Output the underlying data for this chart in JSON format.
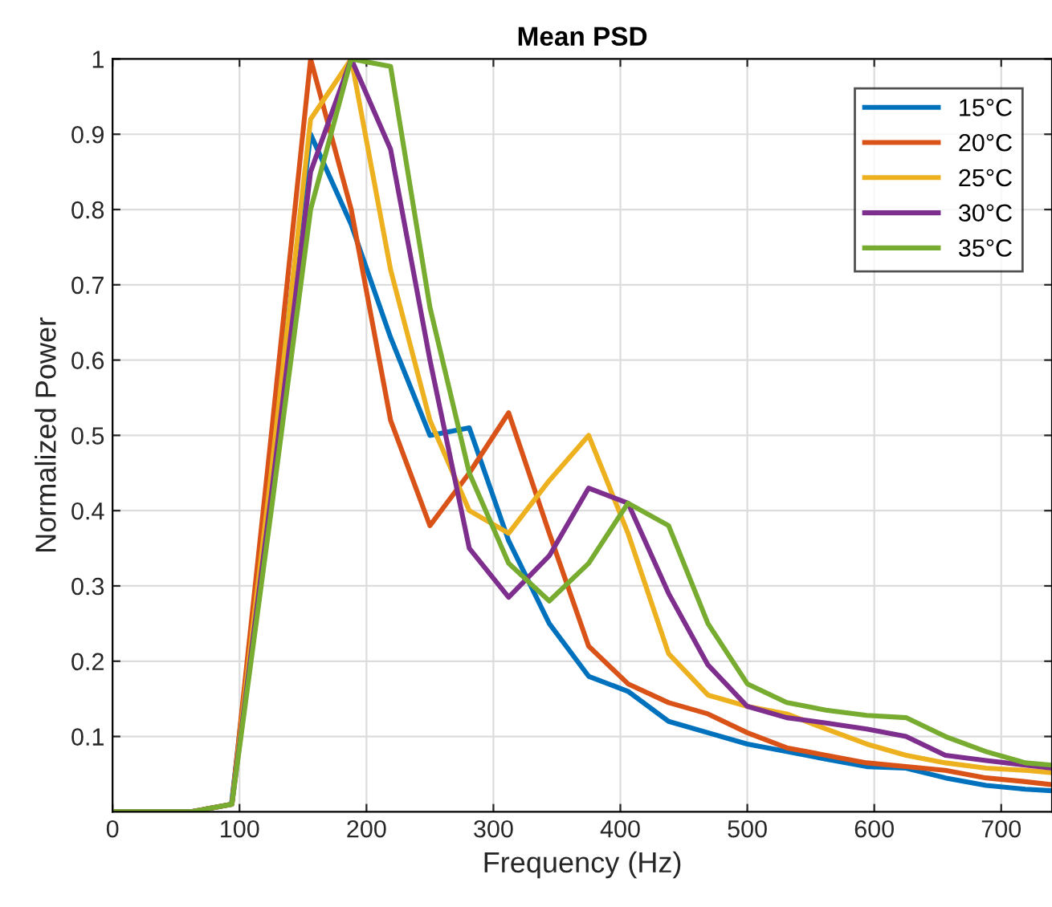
{
  "chart_data": {
    "type": "line",
    "title": "Mean PSD",
    "xlabel": "Frequency (Hz)",
    "ylabel": "Normalized Power",
    "x": [
      0,
      62,
      94,
      125,
      156,
      188,
      219,
      250,
      281,
      312,
      344,
      375,
      406,
      438,
      469,
      500,
      531,
      562,
      594,
      625,
      656,
      688,
      719,
      740
    ],
    "series": [
      {
        "name": "15°C",
        "color": "#0072bd",
        "values": [
          null,
          null,
          0.015,
          0.47,
          0.9,
          0.78,
          0.63,
          0.5,
          0.51,
          0.36,
          0.25,
          0.18,
          0.16,
          0.12,
          0.105,
          0.09,
          0.08,
          0.07,
          0.06,
          0.058,
          0.045,
          0.035,
          0.03,
          0.028
        ]
      },
      {
        "name": "20°C",
        "color": "#d95319",
        "values": [
          0,
          0,
          0.01,
          0.5,
          1.0,
          0.8,
          0.52,
          0.38,
          0.45,
          0.53,
          0.37,
          0.22,
          0.17,
          0.145,
          0.13,
          0.105,
          0.085,
          0.075,
          0.065,
          0.06,
          0.055,
          0.045,
          0.04,
          0.036
        ]
      },
      {
        "name": "25°C",
        "color": "#edb120",
        "values": [
          0,
          0,
          0.01,
          0.45,
          0.92,
          1.0,
          0.72,
          0.52,
          0.4,
          0.37,
          0.44,
          0.5,
          0.37,
          0.21,
          0.155,
          0.14,
          0.13,
          0.11,
          0.09,
          0.075,
          0.065,
          0.058,
          0.055,
          0.052
        ]
      },
      {
        "name": "30°C",
        "color": "#7e2f8e",
        "values": [
          0,
          0,
          0.01,
          0.42,
          0.85,
          1.0,
          0.88,
          0.6,
          0.35,
          0.285,
          0.34,
          0.43,
          0.41,
          0.29,
          0.195,
          0.14,
          0.125,
          0.118,
          0.11,
          0.1,
          0.075,
          0.068,
          0.062,
          0.058
        ]
      },
      {
        "name": "35°C",
        "color": "#77ac30",
        "values": [
          0,
          0,
          0.01,
          0.4,
          0.8,
          1.0,
          0.99,
          0.67,
          0.45,
          0.33,
          0.28,
          0.33,
          0.41,
          0.38,
          0.25,
          0.17,
          0.145,
          0.135,
          0.128,
          0.125,
          0.1,
          0.08,
          0.065,
          0.062
        ]
      }
    ],
    "xlim": [
      0,
      740
    ],
    "ylim": [
      0,
      1
    ],
    "xticks": [
      0,
      100,
      200,
      300,
      400,
      500,
      600,
      700
    ],
    "yticks": [
      0.1,
      0.2,
      0.3,
      0.4,
      0.5,
      0.6,
      0.7,
      0.8,
      0.9,
      1
    ],
    "grid": true,
    "legend": "top right",
    "line_style": "solid",
    "marker": "none"
  }
}
